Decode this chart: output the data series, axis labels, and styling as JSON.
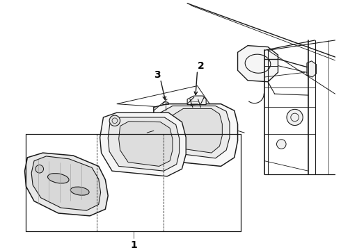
{
  "bg_color": "#ffffff",
  "line_color": "#1a1a1a",
  "label_color": "#000000",
  "part_labels": [
    "1",
    "2",
    "3"
  ],
  "figsize": [
    4.9,
    3.6
  ],
  "dpi": 100
}
